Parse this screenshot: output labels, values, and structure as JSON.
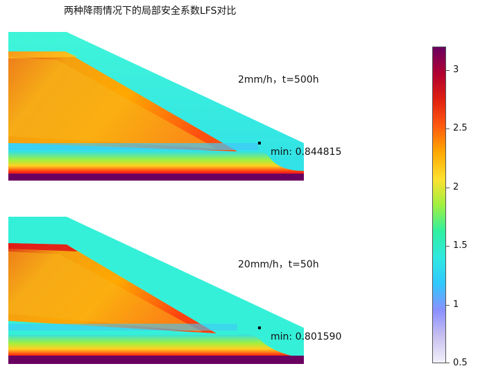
{
  "title": "两种降雨情况下的局部安全系数LFS对比",
  "plots": [
    {
      "case_label": "2mm/h，t=500h",
      "min_label": "min: 0.844815"
    },
    {
      "case_label": "20mm/h，t=50h",
      "min_label": "min: 0.801590"
    }
  ],
  "colorbar": {
    "min": 0.5,
    "max": 3.2,
    "ticks": [
      "3",
      "2.5",
      "2",
      "1.5",
      "1",
      "0.5"
    ],
    "colors": [
      "#6a0060",
      "#b00030",
      "#e02010",
      "#ff5a10",
      "#ffa800",
      "#ffe030",
      "#a0f040",
      "#30f0a0",
      "#30e8e0",
      "#30c8ff",
      "#8a90ff",
      "#c8c0f0",
      "#f2f0fa"
    ]
  }
}
